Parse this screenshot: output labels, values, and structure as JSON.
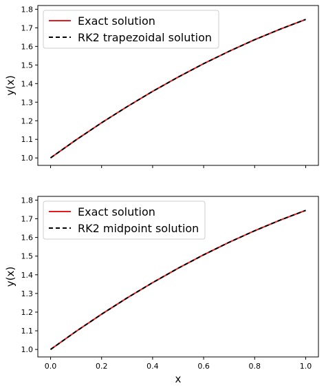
{
  "chart_data": [
    {
      "type": "line",
      "xlabel": "",
      "ylabel": "y(x)",
      "xlim": [
        -0.05,
        1.05
      ],
      "ylim": [
        0.96,
        1.82
      ],
      "xticks": [
        0.0,
        0.2,
        0.4,
        0.6,
        0.8,
        1.0
      ],
      "xtick_labels_visible": false,
      "yticks": [
        1.0,
        1.1,
        1.2,
        1.3,
        1.4,
        1.5,
        1.6,
        1.7,
        1.8
      ],
      "ytick_labels": [
        "1.0",
        "1.1",
        "1.2",
        "1.3",
        "1.4",
        "1.5",
        "1.6",
        "1.7",
        "1.8"
      ],
      "grid": false,
      "legend_position": "top-left",
      "series": [
        {
          "name": "Exact solution",
          "color": "#e41a1c",
          "style": "solid",
          "x": [
            0.0,
            0.1,
            0.2,
            0.3,
            0.4,
            0.5,
            0.6,
            0.7,
            0.8,
            0.9,
            1.0
          ],
          "y": [
            1.0,
            1.097,
            1.189,
            1.276,
            1.358,
            1.435,
            1.507,
            1.574,
            1.636,
            1.693,
            1.745
          ]
        },
        {
          "name": "RK2 trapezoidal solution",
          "color": "#000000",
          "style": "dashed",
          "x": [
            0.0,
            0.1,
            0.2,
            0.3,
            0.4,
            0.5,
            0.6,
            0.7,
            0.8,
            0.9,
            1.0
          ],
          "y": [
            1.0,
            1.097,
            1.189,
            1.276,
            1.358,
            1.435,
            1.507,
            1.574,
            1.636,
            1.693,
            1.745
          ]
        }
      ]
    },
    {
      "type": "line",
      "xlabel": "x",
      "ylabel": "y(x)",
      "xlim": [
        -0.05,
        1.05
      ],
      "ylim": [
        0.96,
        1.82
      ],
      "xticks": [
        0.0,
        0.2,
        0.4,
        0.6,
        0.8,
        1.0
      ],
      "xtick_labels": [
        "0.0",
        "0.2",
        "0.4",
        "0.6",
        "0.8",
        "1.0"
      ],
      "xtick_labels_visible": true,
      "yticks": [
        1.0,
        1.1,
        1.2,
        1.3,
        1.4,
        1.5,
        1.6,
        1.7,
        1.8
      ],
      "ytick_labels": [
        "1.0",
        "1.1",
        "1.2",
        "1.3",
        "1.4",
        "1.5",
        "1.6",
        "1.7",
        "1.8"
      ],
      "grid": false,
      "legend_position": "top-left",
      "series": [
        {
          "name": "Exact solution",
          "color": "#e41a1c",
          "style": "solid",
          "x": [
            0.0,
            0.1,
            0.2,
            0.3,
            0.4,
            0.5,
            0.6,
            0.7,
            0.8,
            0.9,
            1.0
          ],
          "y": [
            1.0,
            1.097,
            1.189,
            1.276,
            1.358,
            1.435,
            1.507,
            1.574,
            1.636,
            1.693,
            1.745
          ]
        },
        {
          "name": "RK2 midpoint solution",
          "color": "#000000",
          "style": "dashed",
          "x": [
            0.0,
            0.1,
            0.2,
            0.3,
            0.4,
            0.5,
            0.6,
            0.7,
            0.8,
            0.9,
            1.0
          ],
          "y": [
            1.0,
            1.097,
            1.189,
            1.276,
            1.358,
            1.435,
            1.507,
            1.574,
            1.636,
            1.693,
            1.745
          ]
        }
      ]
    }
  ]
}
